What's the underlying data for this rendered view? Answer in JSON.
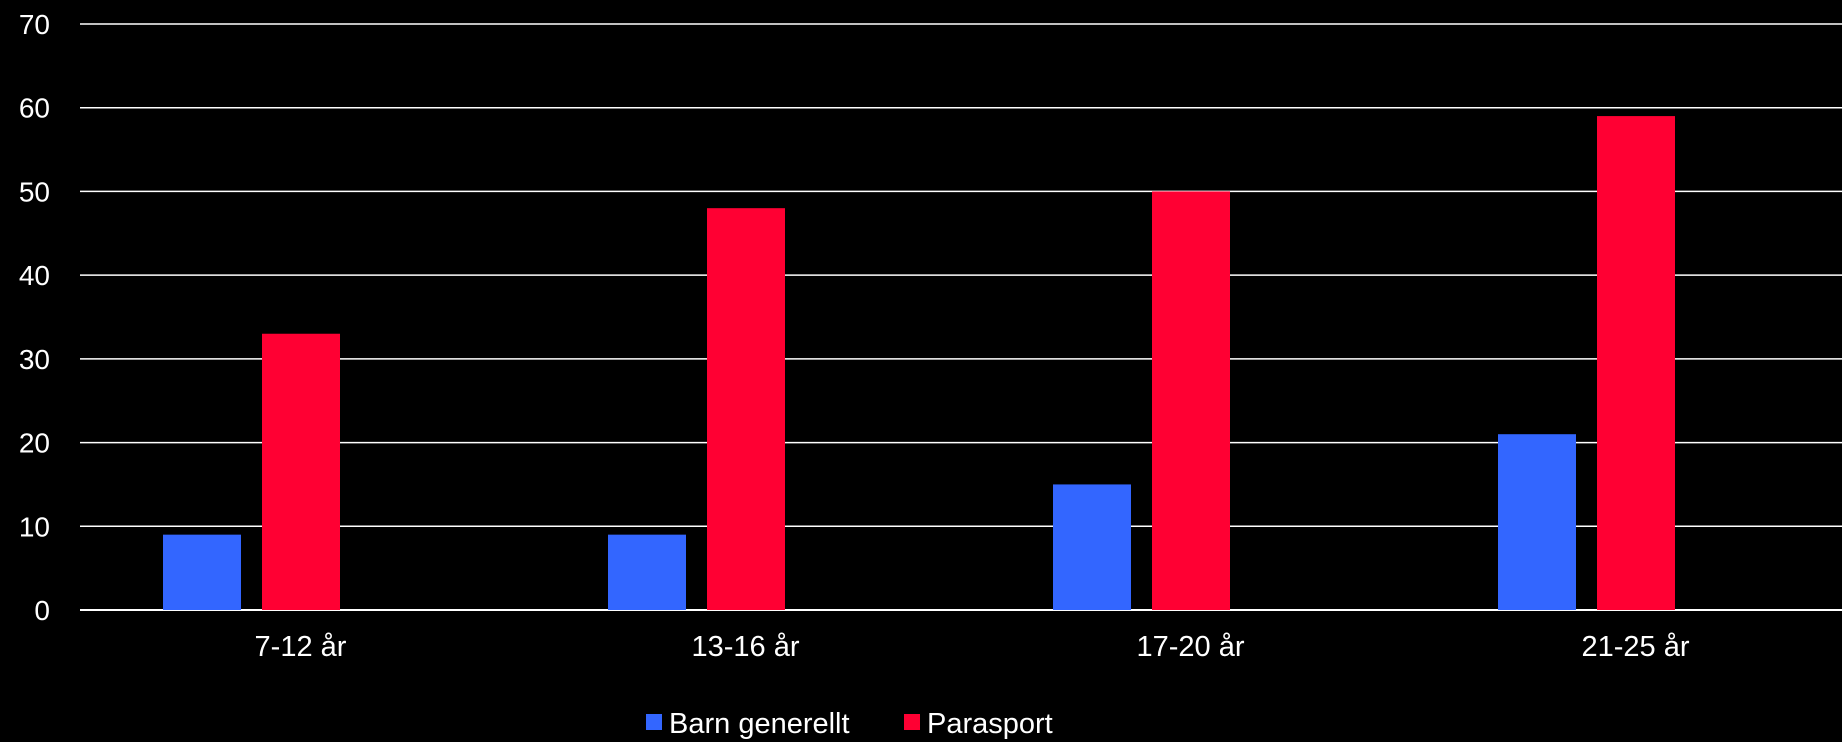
{
  "chart_data": {
    "type": "bar",
    "categories": [
      "7-12 år",
      "13-16 år",
      "17-20 år",
      "21-25 år"
    ],
    "series": [
      {
        "name": "Barn generellt",
        "color": "#3366ff",
        "values": [
          9,
          9,
          15,
          21
        ]
      },
      {
        "name": "Parasport",
        "color": "#ff0033",
        "values": [
          33,
          48,
          50,
          59
        ]
      }
    ],
    "ylim": [
      0,
      70
    ],
    "yticks": [
      0,
      10,
      20,
      30,
      40,
      50,
      60,
      70
    ],
    "grid": true,
    "legend_position": "bottom",
    "title": "",
    "xlabel": "",
    "ylabel": ""
  },
  "colors": {
    "background": "#000000",
    "gridline": "#ffffff",
    "text": "#ffffff"
  }
}
